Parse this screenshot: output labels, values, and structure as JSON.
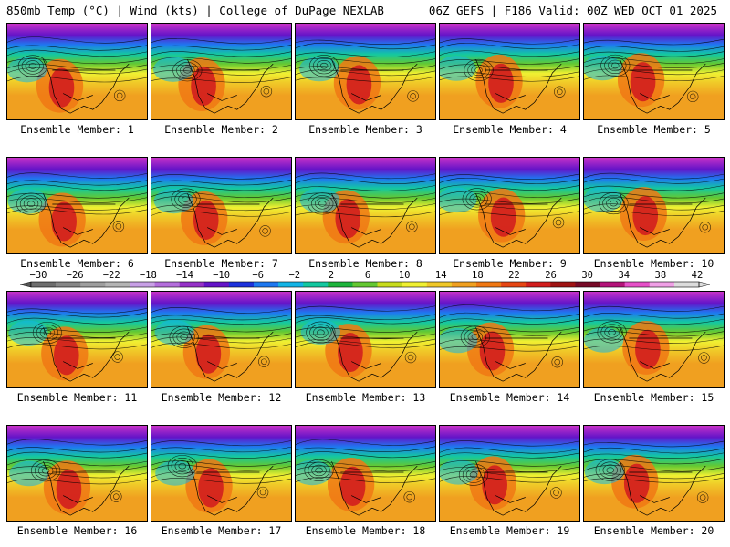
{
  "header": {
    "left": "850mb Temp (°C) | Wind (kts) | College of DuPage NEXLAB",
    "right": "06Z GEFS | F186 Valid: 00Z WED OCT 01 2025"
  },
  "members": [
    "Ensemble Member: 1",
    "Ensemble Member: 2",
    "Ensemble Member: 3",
    "Ensemble Member: 4",
    "Ensemble Member: 5",
    "Ensemble Member: 6",
    "Ensemble Member: 7",
    "Ensemble Member: 8",
    "Ensemble Member: 9",
    "Ensemble Member: 10",
    "Ensemble Member: 11",
    "Ensemble Member: 12",
    "Ensemble Member: 13",
    "Ensemble Member: 14",
    "Ensemble Member: 15",
    "Ensemble Member: 16",
    "Ensemble Member: 17",
    "Ensemble Member: 18",
    "Ensemble Member: 19",
    "Ensemble Member: 20"
  ],
  "colorbar": {
    "ticks": [
      "−30",
      "−26",
      "−22",
      "−18",
      "−14",
      "−10",
      "−6",
      "−2",
      "2",
      "6",
      "10",
      "14",
      "18",
      "22",
      "26",
      "30",
      "34",
      "38",
      "42"
    ],
    "colors": [
      "#6e6e6e",
      "#878787",
      "#9e9e9e",
      "#b4b4b4",
      "#c8a0e6",
      "#b46edc",
      "#9632c8",
      "#6414c8",
      "#1e32dc",
      "#1e78f0",
      "#14b4e6",
      "#14c8a0",
      "#1eb43c",
      "#64c832",
      "#c8dc1e",
      "#f0f032",
      "#f0c828",
      "#f0a020",
      "#f07814",
      "#e64614",
      "#d21e1e",
      "#a01414",
      "#780a28",
      "#b4147a",
      "#e650c8",
      "#f0a0e6",
      "#dcdcdc"
    ]
  }
}
